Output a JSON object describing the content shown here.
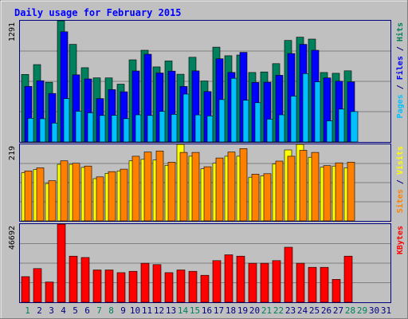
{
  "colors": {
    "background": "#c0c0c0",
    "frame_light": "#ffffff",
    "frame_dark": "#808080",
    "title": "#0000ff",
    "hits": "#00805c",
    "files": "#0000ff",
    "pages": "#00c0ff",
    "visits": "#ffff00",
    "sites": "#ff8000",
    "kbytes": "#ff0000",
    "weekend_day": "#00805c",
    "weekday": "#000080",
    "separator": "#000080",
    "gridline": "#808080"
  },
  "chart_data": {
    "type": "bar",
    "title": "Daily usage for February 2015",
    "categories": [
      "1",
      "2",
      "3",
      "4",
      "5",
      "6",
      "7",
      "8",
      "9",
      "10",
      "11",
      "12",
      "13",
      "14",
      "15",
      "16",
      "17",
      "18",
      "19",
      "20",
      "21",
      "22",
      "23",
      "24",
      "25",
      "26",
      "27",
      "28",
      "29",
      "30",
      "31"
    ],
    "weekend_days": [
      "1",
      "7",
      "8",
      "14",
      "15",
      "21",
      "22",
      "28",
      "29"
    ],
    "panels": [
      {
        "name": "hits-files-pages",
        "ymax_label": "1291",
        "ymax": 1291,
        "legend": [
          {
            "text": "Pages",
            "color": "#00c0ff"
          },
          {
            "text": " / ",
            "color": "#000080"
          },
          {
            "text": "Files",
            "color": "#0000ff"
          },
          {
            "text": " / ",
            "color": "#000080"
          },
          {
            "text": "Hits",
            "color": "#00805c"
          }
        ],
        "series": [
          {
            "name": "Hits",
            "color": "#00805c",
            "values": [
              719,
              824,
              635,
              1291,
              1040,
              791,
              683,
              682,
              616,
              875,
              977,
              799,
              863,
              721,
              902,
              650,
              1010,
              918,
              926,
              740,
              746,
              834,
              1081,
              1116,
              1096,
              740,
              731,
              758,
              0,
              0,
              0
            ]
          },
          {
            "name": "Files",
            "color": "#0000ff",
            "values": [
              592,
              652,
              516,
              1174,
              715,
              671,
              462,
              557,
              534,
              756,
              934,
              735,
              754,
              591,
              757,
              537,
              886,
              741,
              955,
              634,
              636,
              710,
              942,
              1040,
              977,
              682,
              647,
              640,
              0,
              0,
              0
            ]
          },
          {
            "name": "Pages",
            "color": "#00c0ff",
            "values": [
              252,
              247,
              201,
              462,
              327,
              310,
              282,
              284,
              248,
              289,
              282,
              325,
              294,
              510,
              288,
              278,
              451,
              678,
              444,
              418,
              243,
              289,
              488,
              728,
              640,
              225,
              350,
              324,
              0,
              0,
              0
            ]
          }
        ]
      },
      {
        "name": "visits-sites",
        "ymax_label": "219",
        "ymax": 219,
        "legend": [
          {
            "text": "Sites",
            "color": "#ff8000"
          },
          {
            "text": " / ",
            "color": "#000080"
          },
          {
            "text": "Visits",
            "color": "#ffff00"
          }
        ],
        "series": [
          {
            "name": "Visits",
            "color": "#ffff00",
            "values": [
              138,
              147,
              107,
              162,
              162,
              153,
              121,
              136,
              143,
              172,
              176,
              174,
              159,
              219,
              185,
              149,
              165,
              185,
              185,
              125,
              129,
              163,
              203,
              219,
              182,
              154,
              157,
              152,
              0,
              0,
              0
            ]
          },
          {
            "name": "Sites",
            "color": "#ff8000",
            "values": [
              143,
              152,
              115,
              172,
              165,
              157,
              126,
              141,
              148,
              185,
              197,
              200,
              168,
              196,
              196,
              155,
              180,
              197,
              207,
              134,
              135,
              171,
              185,
              202,
              196,
              158,
              166,
              168,
              0,
              0,
              0
            ]
          }
        ]
      },
      {
        "name": "kbytes",
        "ymax_label": "46692",
        "ymax": 46692,
        "legend": [
          {
            "text": "KBytes",
            "color": "#ff0000"
          }
        ],
        "series": [
          {
            "name": "KBytes",
            "color": "#ff0000",
            "values": [
              15283,
              20086,
              12081,
              46692,
              27532,
              26731,
              19286,
              19286,
              17684,
              18485,
              23286,
              22485,
              17684,
              19286,
              18485,
              16083,
              24889,
              28333,
              27532,
              23286,
              23286,
              24889,
              32895,
              23286,
              20889,
              20889,
              13680,
              27532,
              0,
              0,
              0
            ]
          }
        ]
      }
    ]
  }
}
